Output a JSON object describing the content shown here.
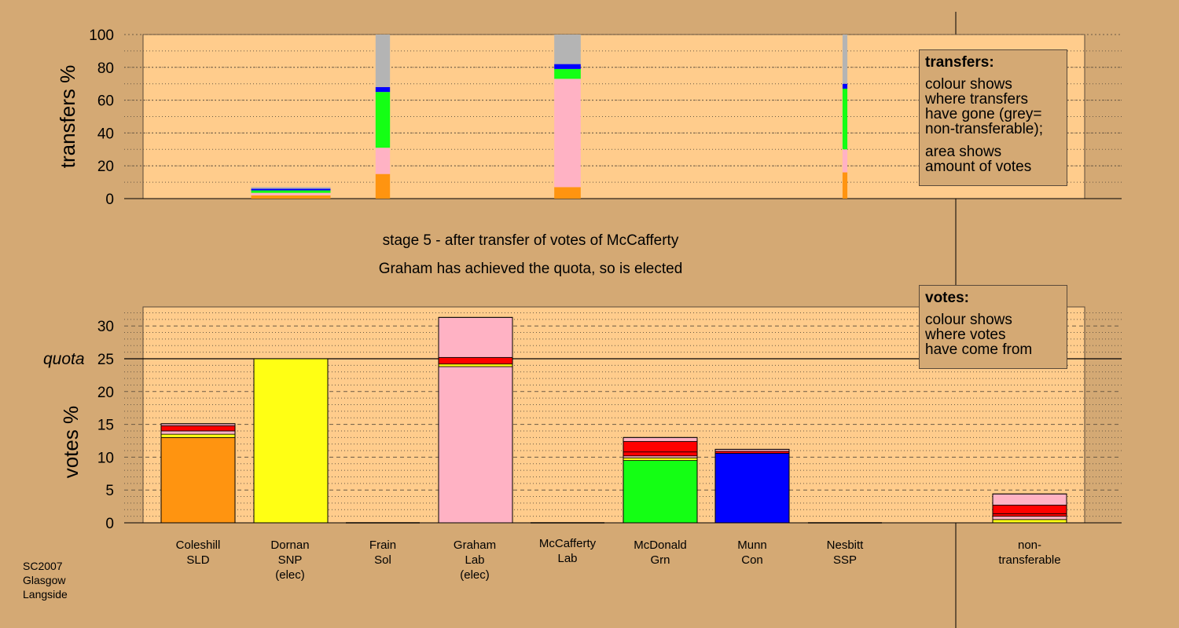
{
  "caption": {
    "stage": "stage 5 - after transfer of votes of McCafferty",
    "result": "Graham has achieved the quota, so is elected"
  },
  "source_note": [
    "SC2007",
    "Glasgow",
    "Langside"
  ],
  "legend_transfers": {
    "title": "transfers:",
    "line1": [
      "colour shows",
      "where transfers",
      "have gone (grey=",
      "non-transferable);"
    ],
    "line2": [
      "area shows",
      "amount of votes"
    ]
  },
  "legend_votes": {
    "title": "votes:",
    "lines": [
      "colour shows",
      "where votes",
      "have come from"
    ]
  },
  "quota_label": "quota",
  "colors": {
    "background": "#d4a974",
    "plot_bg": "#ffcc8c",
    "SLD": "#ff9410",
    "SNP": "#ffff14",
    "Lab": "#ffb2c4",
    "Sol": "#ff0000",
    "SSP": "#ff0000",
    "Grn": "#14ff14",
    "Con": "#0000ff",
    "nontransferable": "#b4b4b4"
  },
  "candidates": [
    {
      "name": "Coleshill",
      "party": "SLD",
      "note": ""
    },
    {
      "name": "Dornan",
      "party": "SNP",
      "note": "(elec)"
    },
    {
      "name": "Frain",
      "party": "Sol",
      "note": ""
    },
    {
      "name": "Graham",
      "party": "Lab",
      "note": "(elec)"
    },
    {
      "name": "McCafferty",
      "party": "Lab",
      "note": ""
    },
    {
      "name": "McDonald",
      "party": "Grn",
      "note": ""
    },
    {
      "name": "Munn",
      "party": "Con",
      "note": ""
    },
    {
      "name": "Nesbitt",
      "party": "SSP",
      "note": ""
    },
    {
      "name": "non-",
      "party": "transferable",
      "note": ""
    }
  ],
  "chart_data": [
    {
      "type": "bar",
      "title": "transfers",
      "ylabel": "transfers %",
      "ylim": [
        0,
        100
      ],
      "yticks": [
        0,
        20,
        40,
        60,
        80,
        100
      ],
      "grid": true,
      "legend_position": "top-right",
      "bars": [
        {
          "candidate": "Dornan",
          "width_share": 0.066,
          "segments": [
            {
              "to": "SLD",
              "from": 0,
              "to_value": 2
            },
            {
              "to": "Lab",
              "from": 2,
              "to_value": 3.5
            },
            {
              "to": "Grn",
              "from": 3.5,
              "to_value": 5
            },
            {
              "to": "Con",
              "from": 5,
              "to_value": 6
            },
            {
              "to": "nontransferable",
              "from": 6,
              "to_value": 7
            }
          ]
        },
        {
          "candidate": "Frain",
          "width_share": 0.012,
          "segments": [
            {
              "to": "SLD",
              "from": 0,
              "to_value": 15
            },
            {
              "to": "Lab",
              "from": 15,
              "to_value": 31
            },
            {
              "to": "Grn",
              "from": 31,
              "to_value": 65
            },
            {
              "to": "Con",
              "from": 65,
              "to_value": 68
            },
            {
              "to": "nontransferable",
              "from": 68,
              "to_value": 100
            }
          ]
        },
        {
          "candidate": "McCafferty",
          "width_share": 0.022,
          "segments": [
            {
              "to": "SLD",
              "from": 0,
              "to_value": 7
            },
            {
              "to": "Lab",
              "from": 7,
              "to_value": 73
            },
            {
              "to": "Grn",
              "from": 73,
              "to_value": 79
            },
            {
              "to": "Con",
              "from": 79,
              "to_value": 82
            },
            {
              "to": "nontransferable",
              "from": 82,
              "to_value": 100
            }
          ]
        },
        {
          "candidate": "Nesbitt",
          "width_share": 0.004,
          "segments": [
            {
              "to": "SLD",
              "from": 0,
              "to_value": 16
            },
            {
              "to": "Lab",
              "from": 16,
              "to_value": 30
            },
            {
              "to": "Grn",
              "from": 30,
              "to_value": 67
            },
            {
              "to": "Con",
              "from": 67,
              "to_value": 70
            },
            {
              "to": "nontransferable",
              "from": 70,
              "to_value": 100
            }
          ]
        }
      ]
    },
    {
      "type": "bar",
      "title": "votes",
      "ylabel": "votes %",
      "ylim": [
        0,
        33
      ],
      "yticks": [
        0,
        5,
        10,
        15,
        20,
        25,
        30
      ],
      "quota": 25,
      "grid": true,
      "legend_position": "top-right",
      "bars": [
        {
          "candidate": "Coleshill",
          "segments": [
            {
              "from_party": "SLD",
              "value": 13.0
            },
            {
              "from_party": "SNP",
              "value": 0.5
            },
            {
              "from_party": "Lab",
              "value": 0.5
            },
            {
              "from_party": "Sol",
              "value": 0.8
            },
            {
              "from_party": "Lab",
              "value": 0.3
            }
          ]
        },
        {
          "candidate": "Dornan",
          "segments": [
            {
              "from_party": "SNP",
              "value": 25.0
            }
          ]
        },
        {
          "candidate": "Frain",
          "segments": []
        },
        {
          "candidate": "Graham",
          "segments": [
            {
              "from_party": "Lab",
              "value": 23.8
            },
            {
              "from_party": "SNP",
              "value": 0.4
            },
            {
              "from_party": "Sol",
              "value": 1.0
            },
            {
              "from_party": "Lab",
              "value": 6.1
            }
          ]
        },
        {
          "candidate": "McCafferty",
          "segments": []
        },
        {
          "candidate": "McDonald",
          "segments": [
            {
              "from_party": "Grn",
              "value": 9.5
            },
            {
              "from_party": "SNP",
              "value": 0.4
            },
            {
              "from_party": "Lab",
              "value": 0.3
            },
            {
              "from_party": "Sol",
              "value": 0.6
            },
            {
              "from_party": "SSP",
              "value": 1.6
            },
            {
              "from_party": "Lab",
              "value": 0.6
            }
          ]
        },
        {
          "candidate": "Munn",
          "segments": [
            {
              "from_party": "Con",
              "value": 10.6
            },
            {
              "from_party": "SSP",
              "value": 0.3
            },
            {
              "from_party": "Lab",
              "value": 0.3
            }
          ]
        },
        {
          "candidate": "Nesbitt",
          "segments": []
        },
        {
          "candidate": "non-transferable",
          "segments": [
            {
              "from_party": "SNP",
              "value": 0.5
            },
            {
              "from_party": "Lab",
              "value": 0.5
            },
            {
              "from_party": "Sol",
              "value": 0.4
            },
            {
              "from_party": "SSP",
              "value": 1.3
            },
            {
              "from_party": "Lab",
              "value": 1.7
            }
          ]
        }
      ]
    }
  ]
}
